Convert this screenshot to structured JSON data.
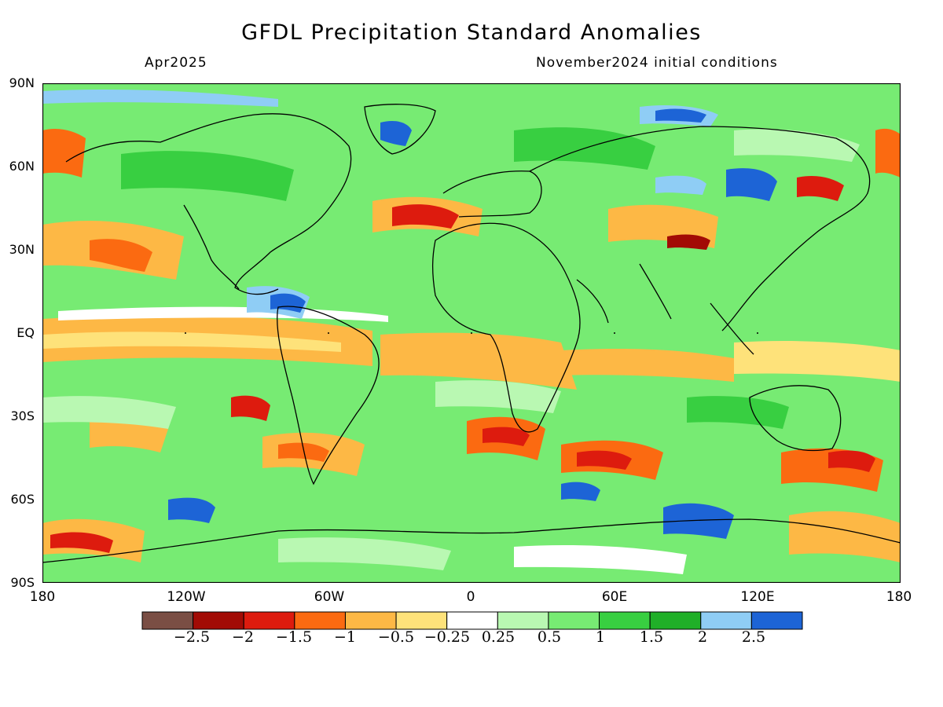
{
  "header": {
    "title": "GFDL Precipitation Standard Anomalies",
    "period": "Apr2025",
    "initial_conditions": "November2024 initial conditions"
  },
  "axes": {
    "lat_labels": [
      "90N",
      "60N",
      "30N",
      "EQ",
      "30S",
      "60S",
      "90S"
    ],
    "lon_labels": [
      "180",
      "120W",
      "60W",
      "0",
      "60E",
      "120E",
      "180"
    ]
  },
  "colorbar": {
    "colors": [
      "#7a4e44",
      "#a20b05",
      "#dd1b0e",
      "#fb6a11",
      "#fdb845",
      "#fee27a",
      "#ffffff",
      "#b9f8b2",
      "#77eb73",
      "#38cf41",
      "#20af28",
      "#8fcdf5",
      "#1d64d6"
    ],
    "labels": [
      "−2.5",
      "−2",
      "−1.5",
      "−1",
      "−0.5",
      "−0.25",
      "0.25",
      "0.5",
      "1",
      "1.5",
      "2",
      "2.5"
    ]
  },
  "map_style": {
    "background": "#77eb73",
    "coastline_color": "#000000"
  }
}
